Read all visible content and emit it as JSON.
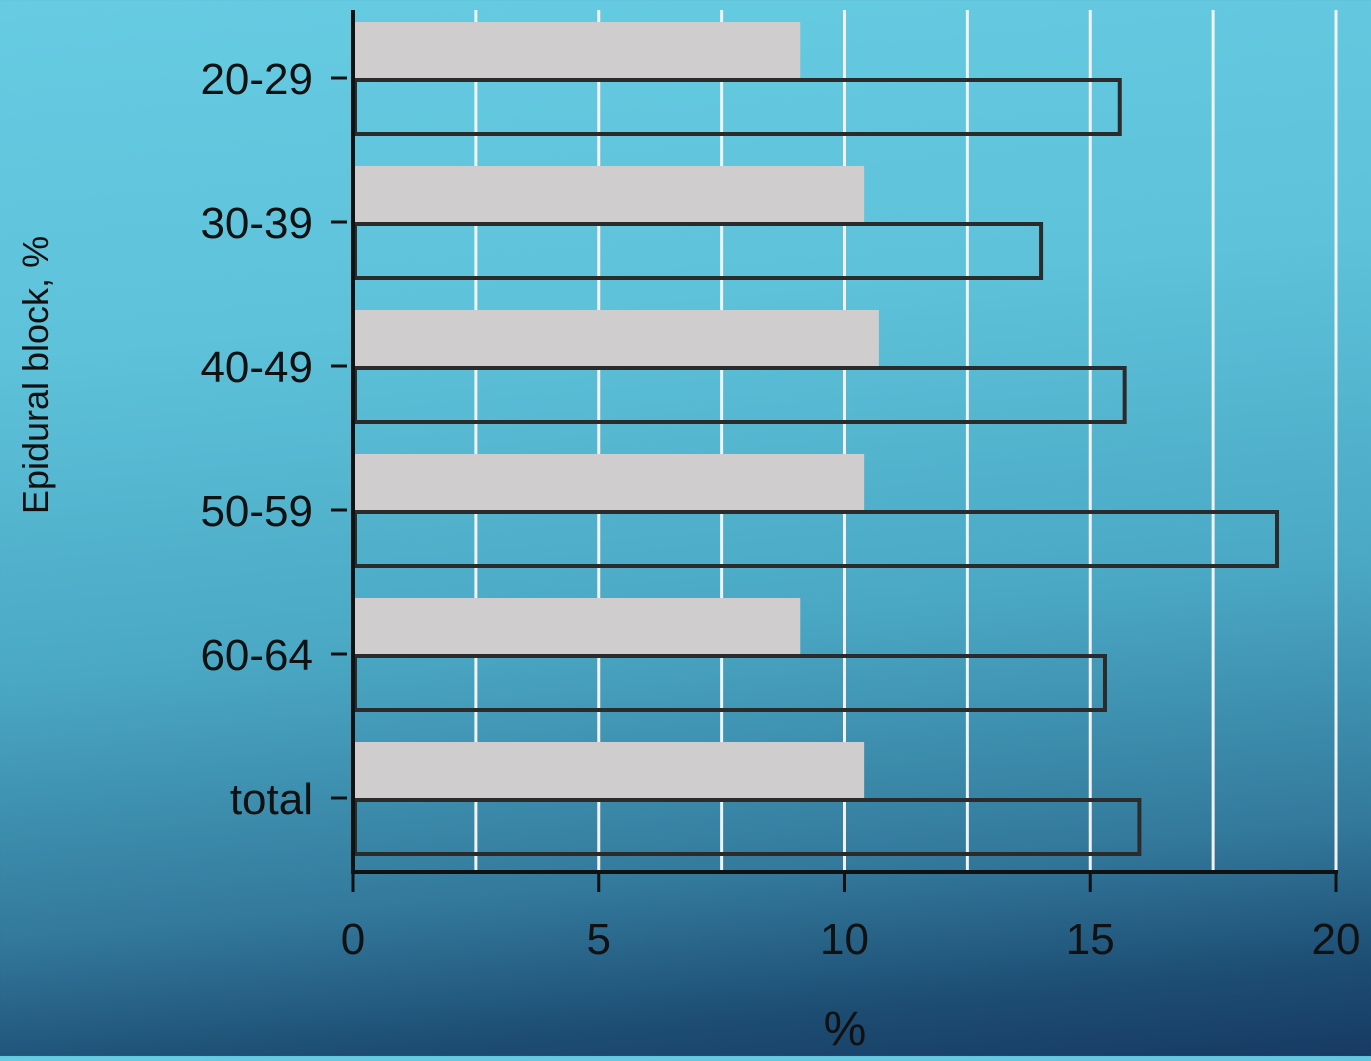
{
  "colors": {
    "bar_fill_series1": "#cfcdcd",
    "bar_outline_series2": "#2b2b2b",
    "gridline": "#f2f2f2",
    "axis": "#111111"
  },
  "chart_data": {
    "type": "bar",
    "orientation": "horizontal",
    "categories": [
      "20-29",
      "30-39",
      "40-49",
      "50-59",
      "60-64",
      "total"
    ],
    "series": [
      {
        "values": [
          9.1,
          10.4,
          10.7,
          10.4,
          9.1,
          10.4
        ],
        "style": "filled-gray"
      },
      {
        "values": [
          15.6,
          14.0,
          15.7,
          18.8,
          15.3,
          16.0
        ],
        "style": "outlined"
      }
    ],
    "xlabel": "%",
    "ylabel": "Epidural block, %",
    "xlim": [
      0,
      20
    ],
    "xticks": [
      "0",
      "5",
      "10",
      "15",
      "20"
    ],
    "gridlines_at": [
      2.5,
      5,
      7.5,
      10,
      12.5,
      15,
      17.5,
      20
    ],
    "grid": true,
    "legend": "none"
  }
}
